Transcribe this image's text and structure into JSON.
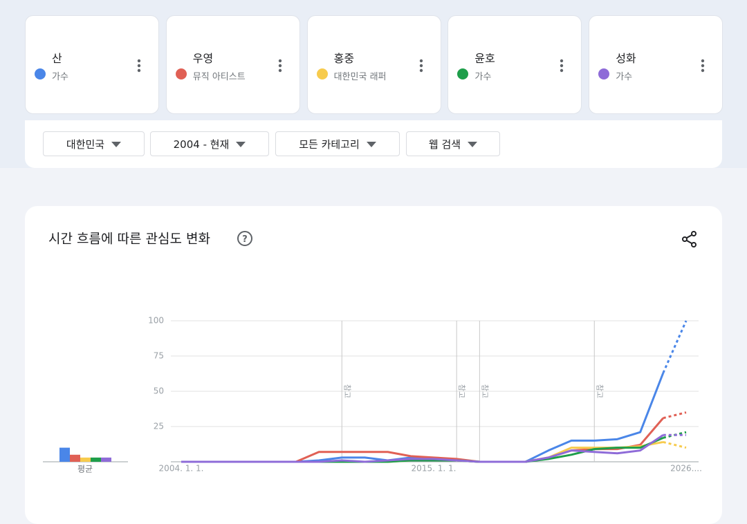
{
  "filters": [
    "대한민국",
    "2004 - 현재",
    "모든 카테고리",
    "웹 검색"
  ],
  "chart_data": {
    "type": "line",
    "title": "시간 흐름에 따른 관심도 변화",
    "average_label": "평균",
    "x": [
      2004,
      2005,
      2006,
      2007,
      2008,
      2009,
      2010,
      2011,
      2012,
      2013,
      2014,
      2015,
      2016,
      2017,
      2018,
      2019,
      2020,
      2021,
      2022,
      2023,
      2024,
      2025,
      2026
    ],
    "xlim": [
      2004,
      2026
    ],
    "xticks": [
      {
        "value": 2004,
        "label": "2004. 1. 1."
      },
      {
        "value": 2015,
        "label": "2015. 1. 1."
      },
      {
        "value": 2026,
        "label": "2026...."
      }
    ],
    "ylim": [
      0,
      100
    ],
    "yticks": [
      25,
      50,
      75,
      100
    ],
    "grid": true,
    "last_point_partial": true,
    "notes": [
      {
        "x": 2011,
        "label": "참고"
      },
      {
        "x": 2016,
        "label": "참고"
      },
      {
        "x": 2017,
        "label": "참고"
      },
      {
        "x": 2022,
        "label": "참고"
      }
    ],
    "series": [
      {
        "name": "산",
        "subtitle": "가수",
        "color": "#4a86e8",
        "average": 10,
        "values": [
          0,
          0,
          0,
          0,
          0,
          0,
          1,
          3,
          3,
          1,
          3,
          2,
          1,
          0,
          0,
          0,
          8,
          15,
          15,
          16,
          21,
          63,
          100
        ]
      },
      {
        "name": "우영",
        "subtitle": "뮤직 아티스트",
        "color": "#e06055",
        "average": 5,
        "values": [
          0,
          0,
          0,
          0,
          0,
          0,
          7,
          7,
          7,
          7,
          4,
          3,
          2,
          0,
          0,
          0,
          3,
          8,
          9,
          9,
          12,
          31,
          35
        ]
      },
      {
        "name": "홍중",
        "subtitle": "대한민국 래퍼",
        "color": "#f7cb4d",
        "average": 3,
        "values": [
          0,
          0,
          0,
          0,
          0,
          0,
          0,
          0,
          0,
          0,
          1,
          1,
          1,
          0,
          0,
          0,
          3,
          10,
          10,
          10,
          11,
          14,
          10
        ]
      },
      {
        "name": "윤호",
        "subtitle": "가수",
        "color": "#1e9e4a",
        "average": 3,
        "values": [
          0,
          0,
          0,
          0,
          0,
          0,
          0,
          0,
          0,
          0,
          1,
          1,
          1,
          0,
          0,
          0,
          2,
          5,
          9,
          10,
          10,
          17,
          21
        ]
      },
      {
        "name": "성화",
        "subtitle": "가수",
        "color": "#8e6bd8",
        "average": 3,
        "values": [
          0,
          0,
          0,
          0,
          0,
          0,
          0,
          1,
          0,
          1,
          2,
          2,
          1,
          0,
          0,
          0,
          3,
          8,
          7,
          6,
          8,
          19,
          19
        ]
      }
    ]
  }
}
